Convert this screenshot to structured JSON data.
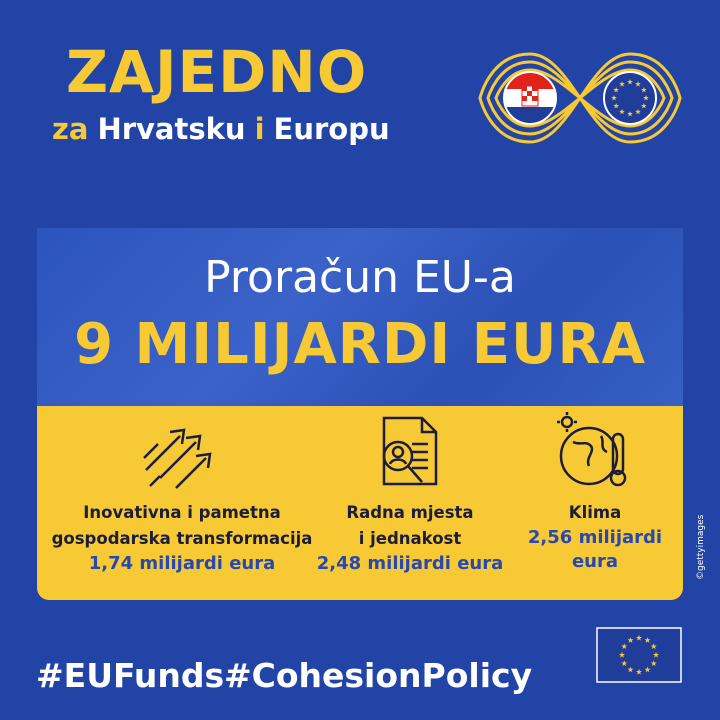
{
  "header": {
    "title": "ZAJEDNO",
    "subtitle": [
      "za",
      "Hrvatsku",
      "i",
      "Europu"
    ]
  },
  "budget": {
    "label": "Proračun EU-a",
    "total": "9 MILIJARDI EURA"
  },
  "items": [
    {
      "title": [
        "Inovativna i pametna",
        "gospodarska transformacija"
      ],
      "amount": [
        "1,74 milijardi eura"
      ]
    },
    {
      "title": [
        "Radna mjesta",
        "i jednakost"
      ],
      "amount": [
        "2,48 milijardi eura"
      ]
    },
    {
      "title": [
        "Klima"
      ],
      "amount": [
        "2,56 milijardi",
        "eura"
      ]
    }
  ],
  "credit": "©gettyimages",
  "hashtags": [
    "#EUFunds",
    "#CohesionPolicy"
  ]
}
